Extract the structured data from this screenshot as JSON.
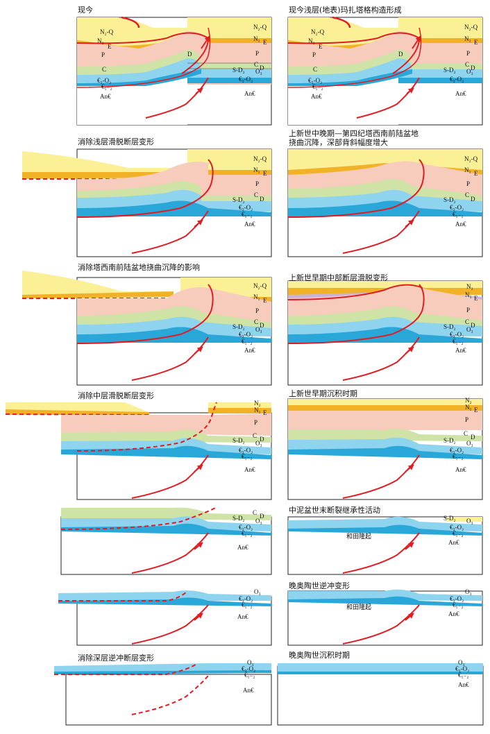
{
  "colors": {
    "yellow": "#fbf096",
    "orange": "#f2b227",
    "purple": "#c7b4d6",
    "pink": "#f7ccbc",
    "green": "#cfe3a6",
    "blue": "#8fd4ef",
    "darkblue": "#2aa7d9",
    "fault": "#e11b22"
  },
  "panels": [
    {
      "id": "p1",
      "title": "现今",
      "labels": {
        "nq": "N₂-Q",
        "n1": "N₁",
        "e": "E",
        "p": "P",
        "c": "C",
        "d": "D",
        "cambr": "€₃-O₂",
        "an": "An€",
        "an2": "An€",
        "lower": "€₁₋₂",
        "nq2": "N₂-Q",
        "n12": "N₁",
        "e2": "E",
        "p2": "P",
        "c2": "C",
        "sd": "S-D₂",
        "o": "O₃",
        "cambr2": "€₃-O₂",
        "d2": "D"
      }
    },
    {
      "id": "p2",
      "title": "现今浅层(地表)玛扎塔格构造形成",
      "labels": {
        "nq": "N₂-Q",
        "n1": "N₁",
        "e": "E",
        "p": "P",
        "c": "C",
        "d": "D",
        "cambr": "€₃-O₂",
        "an": "An€",
        "an2": "An€",
        "lower": "€₁₋₂",
        "nq2": "N₂-Q",
        "n12": "N₁",
        "e2": "E",
        "p2": "P",
        "c2": "C",
        "sd": "S-D₂",
        "o": "O₃",
        "cambr2": "€₃-O₂",
        "d2": "D"
      }
    },
    {
      "id": "p3",
      "title": "消除浅层滑脱断层变形",
      "labels": {
        "nq2": "N₂-Q",
        "n12": "N₁",
        "e2": "E",
        "p2": "P",
        "c2": "C",
        "sd": "S-D₂",
        "d2": "D",
        "cambr2": "€₃-O₂",
        "lower": "€₁₋₂",
        "an2": "An€"
      }
    },
    {
      "id": "p4",
      "title": "上新世中晚期—第四纪塔西南前陆盆地\n挠曲沉降，深部背斜幅度增大",
      "labels": {
        "nq2": "N₂-Q",
        "n12": "N₁",
        "e2": "E",
        "p2": "P",
        "c2": "C",
        "sd": "S-D₂",
        "d2": "D",
        "cambr2": "€₃-O₂",
        "lower": "€₁₋₂",
        "an2": "An€"
      }
    },
    {
      "id": "p5",
      "title": "消除塔西南前陆盆地挠曲沉降的影响",
      "labels": {
        "nq2": "N₂-Q",
        "n12": "N₁",
        "e2": "E",
        "p2": "P",
        "c2": "C",
        "sd": "S-D₂",
        "d2": "D",
        "o": "O₃",
        "cambr2": "€₃-O₂",
        "lower": "€₁₋₂",
        "an2": "An€"
      }
    },
    {
      "id": "p6",
      "title": "上新世早期中部断层滑脱变形",
      "labels": {
        "nq2": "N₂",
        "n12": "N₁",
        "e2": "E",
        "p2": "P",
        "c2": "C",
        "sd": "S-D₂",
        "d2": "D",
        "o": "O₃",
        "cambr2": "€₃-O₂",
        "lower": "€₁₋₂",
        "an2": "An€"
      }
    },
    {
      "id": "p7",
      "title": "消除中层滑脱断层变形",
      "labels": {
        "nq2": "N₂",
        "n12": "N₁",
        "e2": "E",
        "p2": "P",
        "c2": "C",
        "sd": "S-D₂",
        "d2": "D",
        "o": "O₃",
        "cambr2": "€₃-O₂",
        "lower": "€₁₋₂",
        "an2": "An€"
      }
    },
    {
      "id": "p8",
      "title": "上新世早期沉积时期",
      "labels": {
        "nq2": "N₂",
        "n12": "N₁",
        "e2": "E",
        "p2": "P",
        "c2": "C",
        "sd": "S-D₂",
        "d2": "D",
        "o": "O₃",
        "cambr2": "€₃-O₂",
        "lower": "€₁₋₂",
        "an2": "An€"
      }
    },
    {
      "id": "p9",
      "title": "",
      "labels": {
        "c2": "C",
        "d2": "D",
        "sd": "S-D₂",
        "o": "O₃",
        "cambr2": "€₃-O₂",
        "lower": "€₁₋₂",
        "an2": "An€"
      }
    },
    {
      "id": "p10",
      "title": "中泥盆世末断裂继承性活动",
      "labels": {
        "sd": "S-D₂",
        "o": "O₃",
        "cambr2": "€₃-O₂",
        "lower": "€₁₋₂",
        "an2": "An€",
        "uplift": "和田隆起"
      }
    },
    {
      "id": "p11",
      "title": "",
      "labels": {
        "o": "O₃",
        "cambr2": "€₃-O₂",
        "lower": "€₁₋₂",
        "an2": "An€"
      }
    },
    {
      "id": "p12",
      "title": "晚奥陶世逆冲变形",
      "labels": {
        "o": "O₃",
        "cambr2": "€₃-O₂",
        "lower": "€₁₋₂",
        "an2": "An€",
        "uplift": "和田隆起"
      }
    },
    {
      "id": "p13",
      "title": "消除深层逆冲断层变形",
      "labels": {
        "o": "O₃",
        "cambr2": "€₃-O₂",
        "lower": "€₁₋₂",
        "an2": "An€"
      }
    },
    {
      "id": "p14",
      "title": "晚奥陶世沉积时期",
      "labels": {
        "o": "O₃",
        "cambr2": "€₃-O₂",
        "lower": "€₁₋₂",
        "an2": "An€"
      }
    }
  ]
}
